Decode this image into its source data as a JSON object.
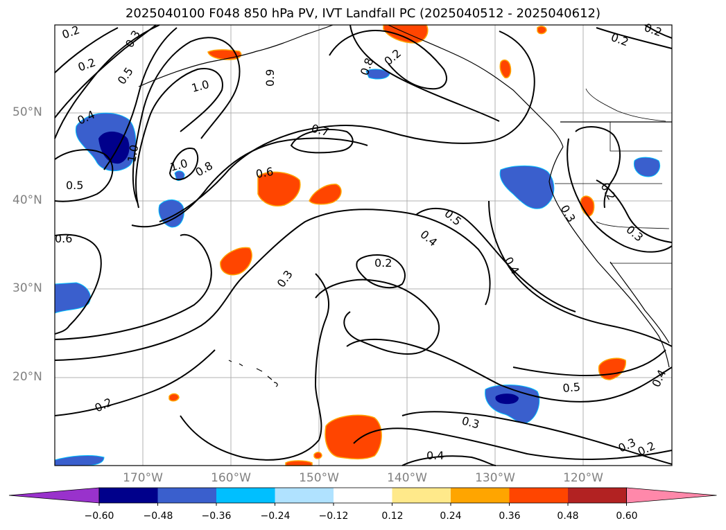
{
  "title": "2025040100 F048 850 hPa PV, IVT Landfall PC (2025040512 - 2025040612)",
  "lat_labels": [
    "50°N",
    "40°N",
    "30°N",
    "20°N"
  ],
  "lon_labels": [
    "170°W",
    "160°W",
    "150°W",
    "140°W",
    "130°W",
    "120°W"
  ],
  "colorbar": {
    "ticks": [
      "−0.60",
      "−0.48",
      "−0.36",
      "−0.24",
      "−0.12",
      "0.12",
      "0.24",
      "0.36",
      "0.48",
      "0.60"
    ],
    "colors": [
      "#9932cc",
      "#00008b",
      "#3a5fcd",
      "#00bfff",
      "#b0e2ff",
      "#ffffff",
      "#ffe98a",
      "#ffa500",
      "#ff4500",
      "#b22222",
      "#ff88aa"
    ]
  },
  "contour_labels": [
    "0.2",
    "0.3",
    "0.2",
    "0.5",
    "0.4",
    "1.0",
    "0.9",
    "1.0",
    "0.7",
    "1.0",
    "0.8",
    "0.6",
    "0.5",
    "0.6",
    "0.5",
    "0.4",
    "0.2",
    "0.3",
    "0.4",
    "0.2",
    "0.3",
    "0.5",
    "0.3",
    "0.4",
    "0.2",
    "0.3",
    "0.2",
    "0.4",
    "0.2",
    "0.8",
    "0.3",
    "0.2",
    "0.2"
  ]
}
